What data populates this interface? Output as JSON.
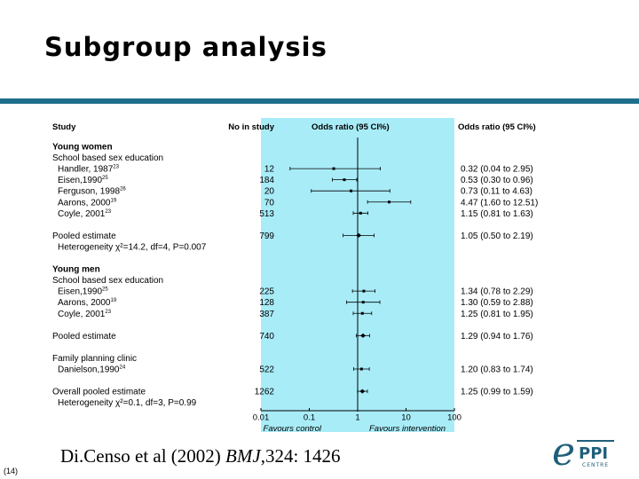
{
  "slide": {
    "title": "Subgroup analysis",
    "citation_pre": "Di.Censo et al (2002) ",
    "citation_journal": "BMJ",
    "citation_post": ",324: 1426",
    "slide_number": "(14)"
  },
  "logo": {
    "letter": "e",
    "top": "PPI",
    "bottom": "CENTRE",
    "color": "#1f5f7a"
  },
  "colors": {
    "title_rule": "#1f6f8b",
    "plot_bg": "#a8ecf8",
    "table_bg": "#ffffff"
  },
  "chart_data": {
    "type": "forest",
    "columns": {
      "study": "Study",
      "n": "No in study",
      "plot": "Odds ratio (95 CI%)",
      "text": "Odds ratio (95 CI%)"
    },
    "x_scale": "log",
    "xlim": [
      0.01,
      100
    ],
    "reference_line": 1,
    "x_ticks": [
      "0.01",
      "0.1",
      "1",
      "10",
      "100"
    ],
    "x_left_label": "Favours control",
    "x_right_label": "Favours intervention",
    "rows": [
      {
        "kind": "group",
        "label": "Young women"
      },
      {
        "kind": "subgroup",
        "label": "School based sex education"
      },
      {
        "kind": "study",
        "label": "Handler, 1987",
        "ref": "23",
        "n": "12",
        "or": 0.32,
        "lo": 0.04,
        "hi": 2.95,
        "text": "0.32 (0.04 to 2.95)"
      },
      {
        "kind": "study",
        "label": "Eisen,1990",
        "ref": "25",
        "n": "184",
        "or": 0.53,
        "lo": 0.3,
        "hi": 0.96,
        "text": "0.53 (0.30 to 0.96)"
      },
      {
        "kind": "study",
        "label": "Ferguson, 1998",
        "ref": "26",
        "n": "20",
        "or": 0.73,
        "lo": 0.11,
        "hi": 4.63,
        "text": "0.73 (0.11 to 4.63)"
      },
      {
        "kind": "study",
        "label": "Aarons, 2000",
        "ref": "19",
        "n": "70",
        "or": 4.47,
        "lo": 1.6,
        "hi": 12.51,
        "text": "4.47 (1.60 to 12.51)"
      },
      {
        "kind": "study",
        "label": "Coyle, 2001",
        "ref": "23",
        "n": "513",
        "or": 1.15,
        "lo": 0.81,
        "hi": 1.63,
        "text": "1.15 (0.81 to 1.63)"
      },
      {
        "kind": "spacer"
      },
      {
        "kind": "pooled",
        "label": "Pooled estimate",
        "n": "799",
        "or": 1.05,
        "lo": 0.5,
        "hi": 2.19,
        "text": "1.05 (0.50 to 2.19)"
      },
      {
        "kind": "het",
        "label": "Heterogeneity χ²=14.2, df=4, P=0.007"
      },
      {
        "kind": "spacer"
      },
      {
        "kind": "group",
        "label": "Young men"
      },
      {
        "kind": "subgroup",
        "label": "School based sex education"
      },
      {
        "kind": "study",
        "label": "Eisen,1990",
        "ref": "25",
        "n": "225",
        "or": 1.34,
        "lo": 0.78,
        "hi": 2.29,
        "text": "1.34 (0.78 to 2.29)"
      },
      {
        "kind": "study",
        "label": "Aarons, 2000",
        "ref": "19",
        "n": "128",
        "or": 1.3,
        "lo": 0.59,
        "hi": 2.88,
        "text": "1.30 (0.59 to 2.88)"
      },
      {
        "kind": "study",
        "label": "Coyle, 2001",
        "ref": "23",
        "n": "387",
        "or": 1.25,
        "lo": 0.81,
        "hi": 1.95,
        "text": "1.25 (0.81 to 1.95)"
      },
      {
        "kind": "spacer"
      },
      {
        "kind": "pooled",
        "label": "Pooled estimate",
        "n": "740",
        "or": 1.29,
        "lo": 0.94,
        "hi": 1.76,
        "text": "1.29 (0.94 to 1.76)"
      },
      {
        "kind": "spacer"
      },
      {
        "kind": "subgroup",
        "label": "Family planning clinic"
      },
      {
        "kind": "study",
        "label": "Danielson,1990",
        "ref": "24",
        "n": "522",
        "or": 1.2,
        "lo": 0.83,
        "hi": 1.74,
        "text": "1.20 (0.83 to 1.74)"
      },
      {
        "kind": "spacer"
      },
      {
        "kind": "pooled",
        "label": "Overall pooled estimate",
        "n": "1262",
        "or": 1.25,
        "lo": 0.99,
        "hi": 1.59,
        "text": "1.25 (0.99 to 1.59)"
      },
      {
        "kind": "het",
        "label": "Heterogeneity χ²=0.1, df=3, P=0.99"
      }
    ]
  }
}
